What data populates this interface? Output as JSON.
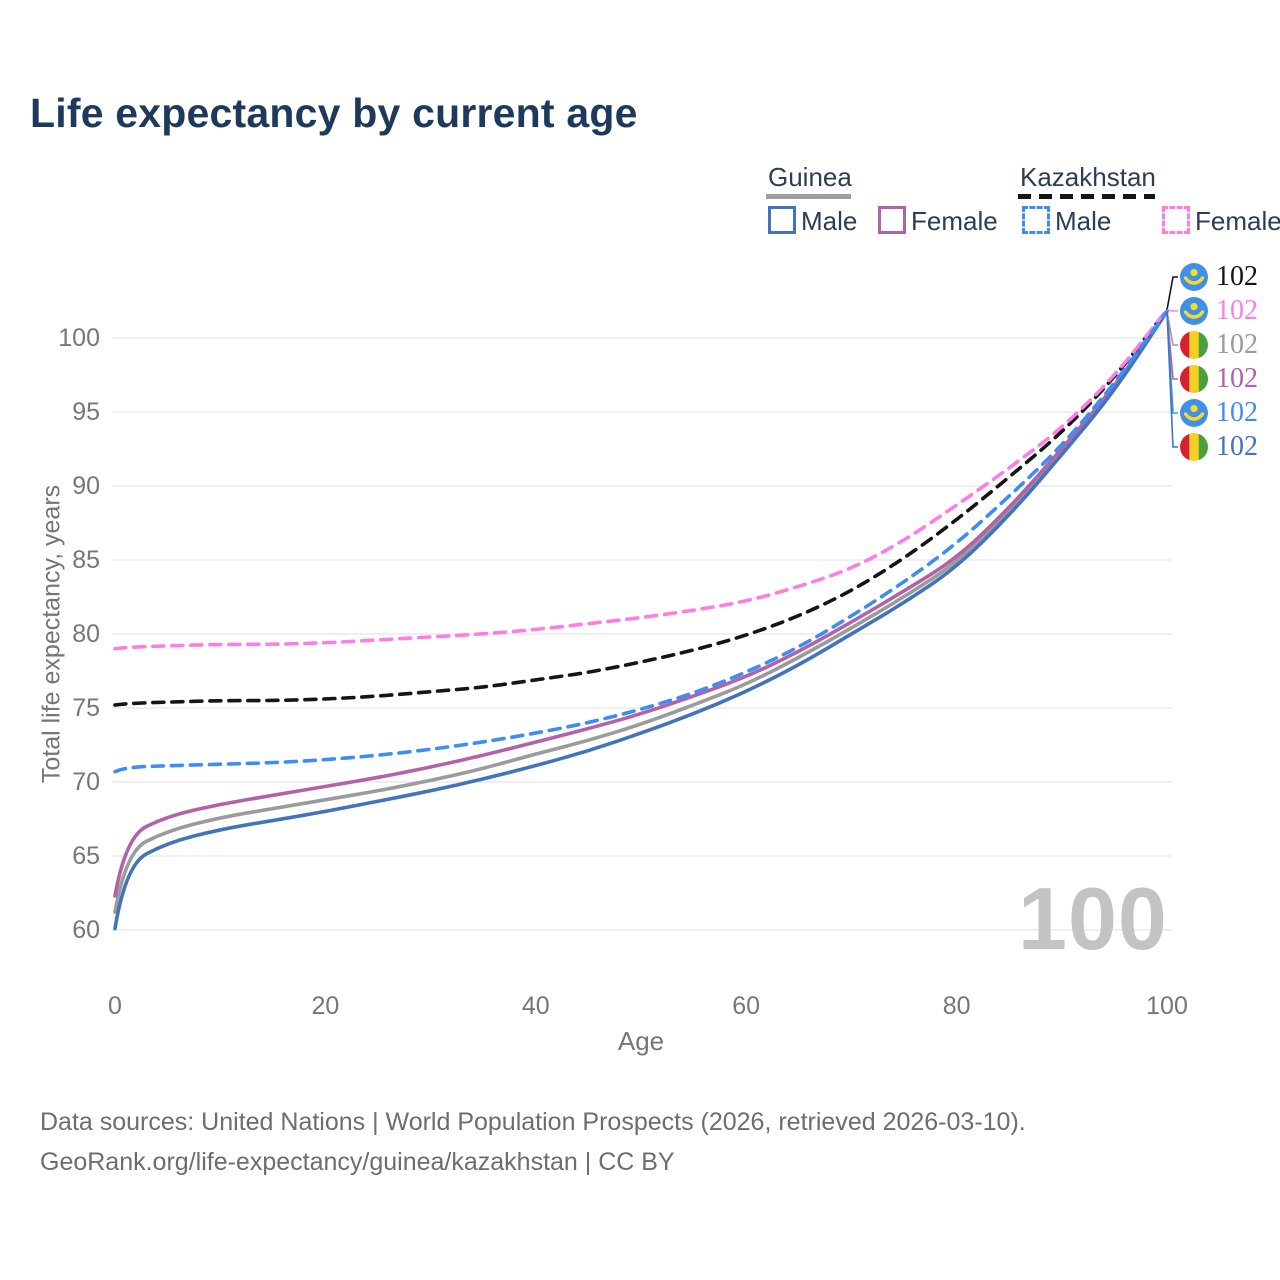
{
  "title": "Life expectancy by current age",
  "watermark": "100",
  "legend": {
    "groups": [
      {
        "name": "Guinea",
        "line_style": "solid",
        "underline_color": "#9e9e9e",
        "items": [
          {
            "label": "Male",
            "color": "#4273bd",
            "dashed": false
          },
          {
            "label": "Female",
            "color": "#b263a8",
            "dashed": false
          }
        ]
      },
      {
        "name": "Kazakhstan",
        "line_style": "dashed",
        "underline_color": "#141414",
        "items": [
          {
            "label": "Male",
            "color": "#3d8df5",
            "dashed": true
          },
          {
            "label": "Female",
            "color": "#fc7ee3",
            "dashed": true
          }
        ]
      }
    ]
  },
  "footer": {
    "line1": "Data sources: United Nations | World Population Prospects (2026, retrieved 2026-03-10).",
    "line2": "GeoRank.org/life-expectancy/guinea/kazakhstan | CC BY"
  },
  "chart_data": {
    "type": "line",
    "title": "Life expectancy by current age",
    "xlabel": "Age",
    "ylabel": "Total life expectancy, years",
    "xlim": [
      0,
      100
    ],
    "ylim": [
      60,
      100
    ],
    "x_ticks": [
      0,
      20,
      40,
      60,
      80,
      100
    ],
    "y_ticks": [
      60,
      65,
      70,
      75,
      80,
      85,
      90,
      95,
      100
    ],
    "grid": "horizontal-only",
    "legend_position": "top-right",
    "x": [
      0,
      1,
      5,
      10,
      15,
      20,
      25,
      30,
      35,
      40,
      45,
      50,
      55,
      60,
      65,
      70,
      75,
      80,
      85,
      90,
      95,
      100
    ],
    "series": [
      {
        "name": "Kazakhstan (both sexes)",
        "flag": "kz",
        "color": "#151515",
        "dashed": true,
        "end_label": "102",
        "values": [
          75.2,
          75.3,
          75.4,
          75.5,
          75.5,
          75.6,
          75.8,
          76.1,
          76.4,
          76.9,
          77.4,
          78.1,
          78.9,
          79.9,
          81.2,
          82.9,
          85.1,
          87.7,
          90.6,
          93.6,
          97.3,
          101.9
        ]
      },
      {
        "name": "Kazakhstan Female",
        "flag": "kz",
        "color": "#fc7ee3",
        "dashed": true,
        "end_label": "102",
        "values": [
          79.0,
          79.1,
          79.2,
          79.3,
          79.3,
          79.4,
          79.6,
          79.8,
          80.0,
          80.3,
          80.7,
          81.1,
          81.6,
          82.2,
          83.2,
          84.4,
          86.3,
          88.7,
          91.2,
          93.9,
          97.4,
          101.9
        ]
      },
      {
        "name": "Guinea (both sexes)",
        "flag": "gn",
        "color": "#9b9b9b",
        "dashed": false,
        "end_label": "102",
        "values": [
          61.2,
          65.3,
          66.7,
          67.6,
          68.2,
          68.8,
          69.4,
          70.1,
          70.9,
          71.9,
          72.8,
          73.9,
          75.2,
          76.6,
          78.4,
          80.4,
          82.5,
          84.8,
          88.3,
          92.3,
          96.5,
          101.8
        ]
      },
      {
        "name": "Guinea Female",
        "flag": "gn",
        "color": "#b263a8",
        "dashed": false,
        "end_label": "102",
        "values": [
          62.3,
          66.3,
          67.7,
          68.5,
          69.1,
          69.7,
          70.3,
          71.0,
          71.8,
          72.7,
          73.6,
          74.6,
          75.8,
          77.1,
          78.8,
          80.8,
          82.9,
          85.1,
          88.5,
          92.5,
          96.7,
          101.8
        ]
      },
      {
        "name": "Kazakhstan Male",
        "flag": "kz",
        "color": "#3d8df5",
        "dashed": true,
        "end_label": "102",
        "values": [
          70.7,
          71.0,
          71.1,
          71.2,
          71.3,
          71.5,
          71.8,
          72.2,
          72.7,
          73.3,
          74.0,
          74.9,
          76.0,
          77.4,
          79.1,
          81.2,
          83.5,
          86.1,
          89.3,
          92.7,
          96.9,
          101.8
        ]
      },
      {
        "name": "Guinea Male",
        "flag": "gn",
        "color": "#4273bd",
        "dashed": false,
        "end_label": "102",
        "values": [
          60.1,
          64.4,
          65.9,
          66.8,
          67.4,
          68.0,
          68.7,
          69.4,
          70.2,
          71.1,
          72.1,
          73.3,
          74.6,
          76.1,
          77.9,
          80.0,
          82.1,
          84.5,
          88.0,
          92.1,
          96.4,
          101.8
        ]
      }
    ]
  }
}
